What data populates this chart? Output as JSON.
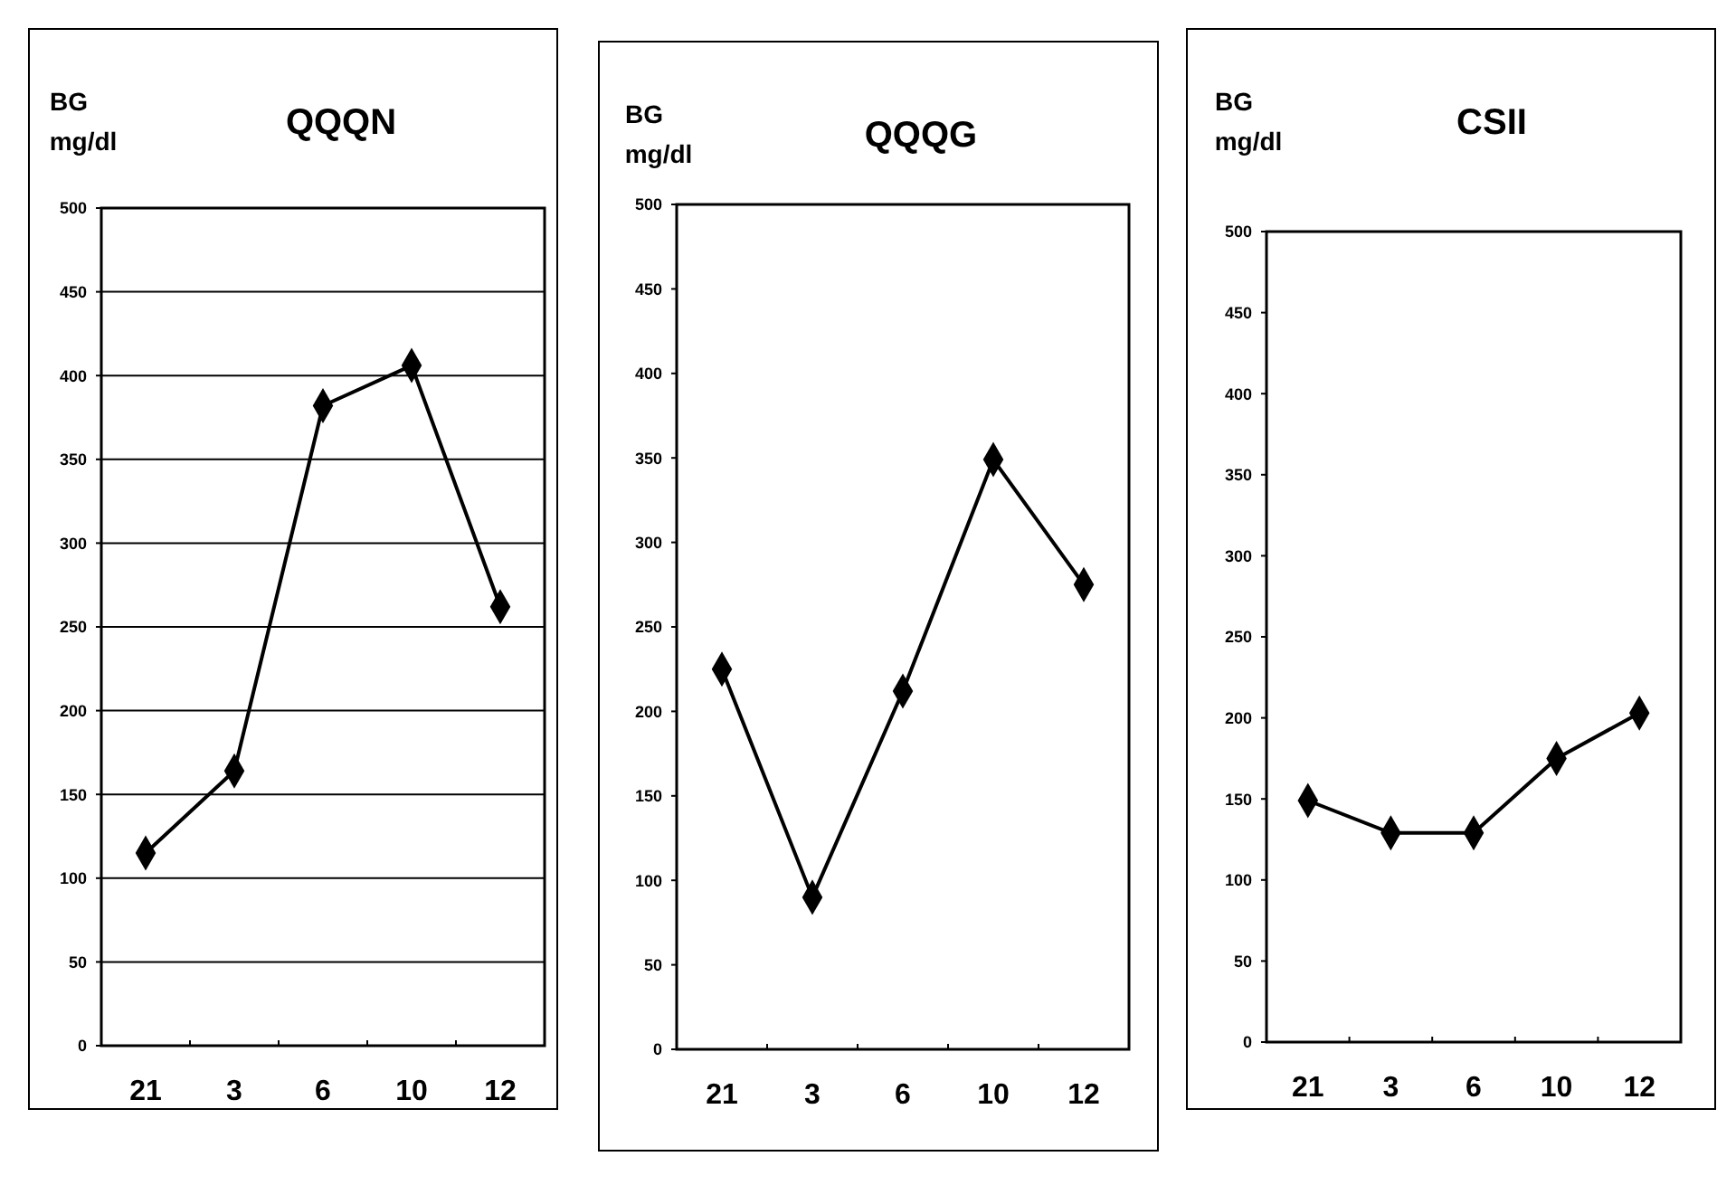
{
  "chart_data": [
    {
      "type": "line",
      "title": "QQQN",
      "ylabel": "BG mg/dl",
      "categories": [
        "21",
        "3",
        "6",
        "10",
        "12"
      ],
      "values": [
        115,
        164,
        382,
        406,
        262
      ],
      "color": "#000000",
      "ylim": [
        0,
        500
      ],
      "yticks": [
        0,
        50,
        100,
        150,
        200,
        250,
        300,
        350,
        400,
        450,
        500
      ],
      "grid": "y",
      "marker": "diamond",
      "line_style": "solid"
    },
    {
      "type": "line",
      "title": "QQQG",
      "ylabel": "BG mg/dl",
      "categories": [
        "21",
        "3",
        "6",
        "10",
        "12"
      ],
      "values": [
        225,
        90,
        212,
        349,
        275
      ],
      "color": "#000000",
      "ylim": [
        0,
        500
      ],
      "yticks": [
        0,
        50,
        100,
        150,
        200,
        250,
        300,
        350,
        400,
        450,
        500
      ],
      "marker": "diamond",
      "line_style": "solid"
    },
    {
      "type": "line",
      "title": "CSII",
      "ylabel": "BG mg/dl",
      "categories": [
        "21",
        "3",
        "6",
        "10",
        "12"
      ],
      "values": [
        149,
        129,
        129,
        175,
        203
      ],
      "color": "#000000",
      "ylim": [
        0,
        500
      ],
      "yticks": [
        0,
        50,
        100,
        150,
        200,
        250,
        300,
        350,
        400,
        450,
        500
      ],
      "marker": "diamond",
      "line_style": "solid"
    }
  ]
}
